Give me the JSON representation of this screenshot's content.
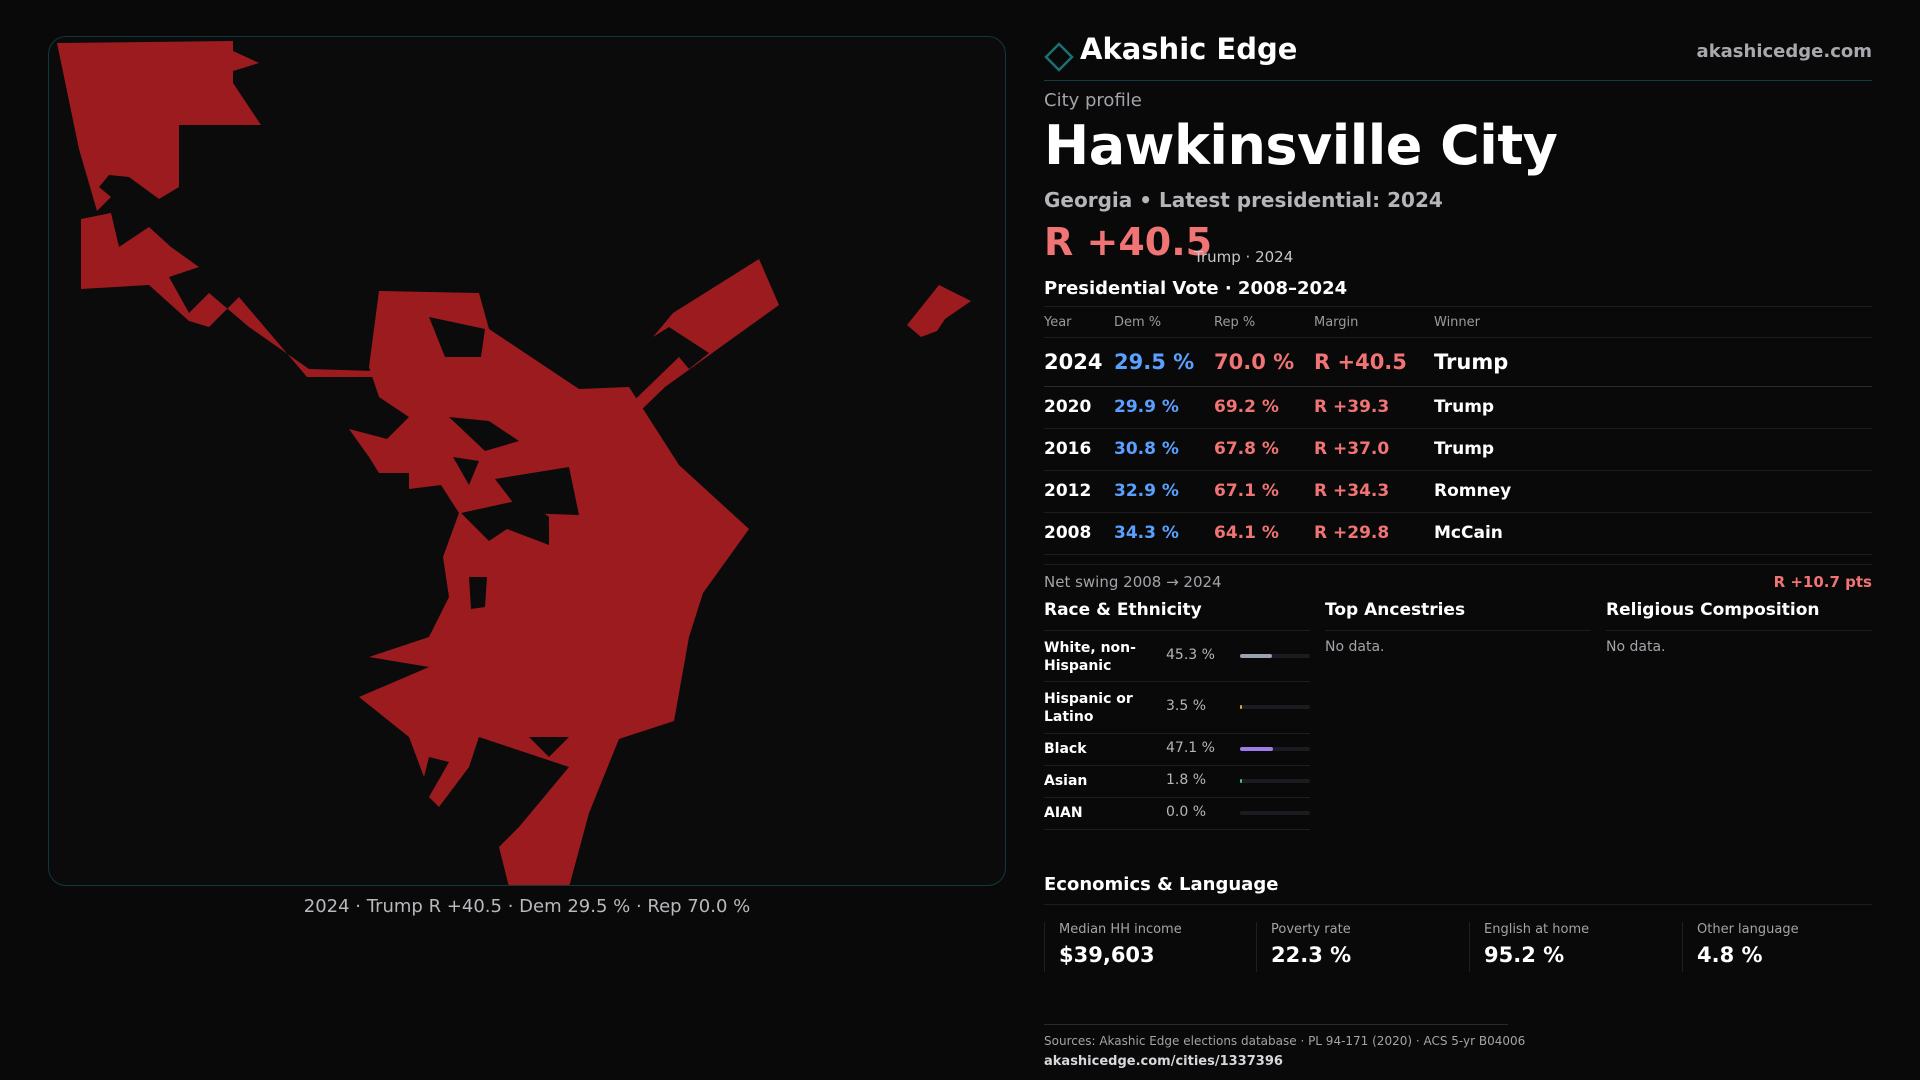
{
  "brand": {
    "name": "Akashic Edge",
    "url": "akashicedge.com"
  },
  "profile": {
    "eyebrow": "City profile",
    "city": "Hawkinsville City",
    "subtitle": "Georgia • Latest presidential: 2024",
    "margin": "R +40.5",
    "margin_detail": "Trump · 2024"
  },
  "map": {
    "caption": "2024 · Trump R +40.5 · Dem 29.5 % · Rep 70.0 %",
    "fill_color": "#9c1b1f"
  },
  "vote_table": {
    "title": "Presidential Vote · 2008–2024",
    "headers": {
      "year": "Year",
      "dem": "Dem %",
      "rep": "Rep %",
      "margin": "Margin",
      "winner": "Winner"
    },
    "rows": [
      {
        "year": "2024",
        "dem": "29.5 %",
        "rep": "70.0 %",
        "margin": "R +40.5",
        "winner": "Trump"
      },
      {
        "year": "2020",
        "dem": "29.9 %",
        "rep": "69.2 %",
        "margin": "R +39.3",
        "winner": "Trump"
      },
      {
        "year": "2016",
        "dem": "30.8 %",
        "rep": "67.8 %",
        "margin": "R +37.0",
        "winner": "Trump"
      },
      {
        "year": "2012",
        "dem": "32.9 %",
        "rep": "67.1 %",
        "margin": "R +34.3",
        "winner": "Romney"
      },
      {
        "year": "2008",
        "dem": "34.3 %",
        "rep": "64.1 %",
        "margin": "R +29.8",
        "winner": "McCain"
      }
    ],
    "swing_label": "Net swing 2008 → 2024",
    "swing_value": "R +10.7 pts"
  },
  "race": {
    "title": "Race & Ethnicity",
    "rows": [
      {
        "name": "White, non-Hispanic",
        "pct": "45.3 %",
        "fraction": 0.453,
        "color": "#9aa2b2"
      },
      {
        "name": "Hispanic or Latino",
        "pct": "3.5 %",
        "fraction": 0.035,
        "color": "#e0a83a"
      },
      {
        "name": "Black",
        "pct": "47.1 %",
        "fraction": 0.471,
        "color": "#9b7fe6"
      },
      {
        "name": "Asian",
        "pct": "1.8 %",
        "fraction": 0.018,
        "color": "#3fbf9a"
      },
      {
        "name": "AIAN",
        "pct": "0.0 %",
        "fraction": 0.0,
        "color": "#9aa2b2"
      }
    ]
  },
  "ancestries": {
    "title": "Top Ancestries",
    "empty": "No data."
  },
  "religion": {
    "title": "Religious Composition",
    "empty": "No data."
  },
  "economics": {
    "title": "Economics & Language",
    "cells": [
      {
        "label": "Median HH income",
        "value": "$39,603"
      },
      {
        "label": "Poverty rate",
        "value": "22.3 %"
      },
      {
        "label": "English at home",
        "value": "95.2 %"
      },
      {
        "label": "Other language",
        "value": "4.8 %"
      }
    ]
  },
  "footer": {
    "sources": "Sources: Akashic Edge elections database · PL 94-171 (2020) · ACS 5-yr B04006",
    "url": "akashicedge.com/cities/1337396"
  },
  "colors": {
    "dem": "#5aa0ff",
    "rep": "#f07474",
    "accent": "#1e6f73"
  }
}
